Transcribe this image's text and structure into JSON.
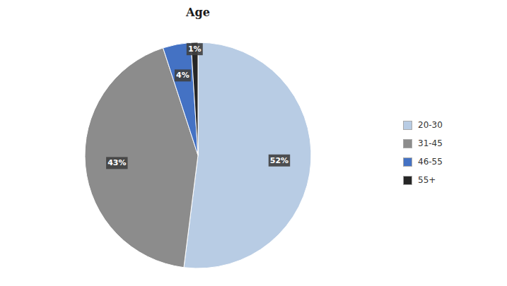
{
  "chart_data": {
    "type": "pie",
    "title": "Age",
    "categories": [
      "20-30",
      "31-45",
      "46-55",
      "55+"
    ],
    "values": [
      52,
      43,
      4,
      1
    ],
    "value_labels": [
      "52%",
      "43%",
      "4%",
      "1%"
    ],
    "colors": [
      "#b8cce4",
      "#8c8c8c",
      "#4472c4",
      "#262626"
    ],
    "data_labels": true,
    "legend": "right"
  }
}
